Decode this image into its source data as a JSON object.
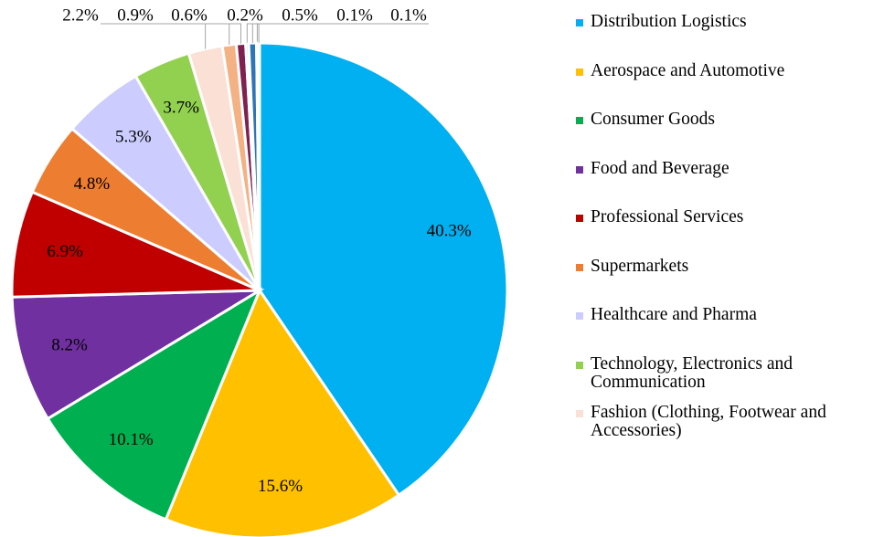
{
  "chart_data": {
    "type": "pie",
    "categories": [
      "Distribution Logistics",
      "Aerospace and Automotive",
      "Consumer Goods",
      "Food and Beverage",
      "Professional Services",
      "Supermarkets",
      "Healthcare and Pharma",
      "Technology, Electronics and Communication",
      "Fashion (Clothing, Footwear and Accessories)",
      null,
      null,
      null,
      null,
      null,
      null
    ],
    "values": [
      40.3,
      15.6,
      10.1,
      8.2,
      6.9,
      4.8,
      5.3,
      3.7,
      2.2,
      0.9,
      0.6,
      0.2,
      0.5,
      0.1,
      0.1
    ],
    "value_labels": [
      "40.3%",
      "15.6%",
      "10.1%",
      "8.2%",
      "6.9%",
      "4.8%",
      "5.3%",
      "3.7%",
      "2.2%",
      "0.9%",
      "0.6%",
      "0.2%",
      "0.5%",
      "0.1%",
      "0.1%"
    ],
    "colors": [
      "#00b0f0",
      "#ffc000",
      "#00b050",
      "#7030a0",
      "#c00000",
      "#ed7d31",
      "#ccccff",
      "#92d050",
      "#fbe0d6",
      "#f4b183",
      "#7f2050",
      "#c9c9c9",
      "#2e75b6",
      "#ffffff",
      "#ffd966"
    ],
    "legend": "right"
  }
}
